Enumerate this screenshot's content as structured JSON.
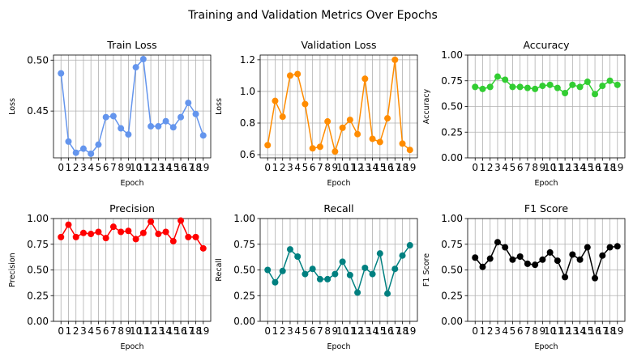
{
  "figure": {
    "title": "Training and Validation Metrics Over Epochs"
  },
  "chart_data": [
    {
      "type": "line",
      "title": "Train Loss",
      "xlabel": "Epoch",
      "ylabel": "Loss",
      "x": [
        0,
        1,
        2,
        3,
        4,
        5,
        6,
        7,
        8,
        9,
        10,
        11,
        12,
        13,
        14,
        15,
        16,
        17,
        18,
        19
      ],
      "y": [
        0.487,
        0.42,
        0.409,
        0.413,
        0.408,
        0.417,
        0.444,
        0.445,
        0.433,
        0.427,
        0.493,
        0.501,
        0.435,
        0.435,
        0.44,
        0.434,
        0.444,
        0.458,
        0.447,
        0.426
      ],
      "xticks": [
        "0",
        "1",
        "2",
        "3",
        "4",
        "5",
        "6",
        "7",
        "8",
        "9",
        "10",
        "11",
        "12",
        "13",
        "14",
        "15",
        "16",
        "17",
        "18",
        "19"
      ],
      "ylim": [
        0.404,
        0.505
      ],
      "yticks": [
        "0.45",
        "0.50"
      ],
      "color": "#6495ED",
      "grid": true
    },
    {
      "type": "line",
      "title": "Validation Loss",
      "xlabel": "Epoch",
      "ylabel": "Loss",
      "x": [
        0,
        1,
        2,
        3,
        4,
        5,
        6,
        7,
        8,
        9,
        10,
        11,
        12,
        13,
        14,
        15,
        16,
        17,
        18,
        19
      ],
      "y": [
        0.66,
        0.94,
        0.84,
        1.1,
        1.11,
        0.92,
        0.64,
        0.65,
        0.81,
        0.62,
        0.77,
        0.82,
        0.73,
        1.08,
        0.7,
        0.68,
        0.83,
        1.2,
        0.67,
        0.63
      ],
      "xticks": [
        "0",
        "1",
        "2",
        "3",
        "4",
        "5",
        "6",
        "7",
        "8",
        "9",
        "10",
        "11",
        "12",
        "13",
        "14",
        "15",
        "16",
        "17",
        "18",
        "19"
      ],
      "ylim": [
        0.58,
        1.23
      ],
      "yticks": [
        "0.6",
        "0.8",
        "1.0",
        "1.2"
      ],
      "color": "#FF8C00",
      "grid": true
    },
    {
      "type": "line",
      "title": "Accuracy",
      "xlabel": "Epoch",
      "ylabel": "Accuracy",
      "x": [
        0,
        1,
        2,
        3,
        4,
        5,
        6,
        7,
        8,
        9,
        10,
        11,
        12,
        13,
        14,
        15,
        16,
        17,
        18,
        19
      ],
      "y": [
        0.69,
        0.67,
        0.69,
        0.79,
        0.76,
        0.69,
        0.69,
        0.68,
        0.67,
        0.7,
        0.71,
        0.68,
        0.63,
        0.71,
        0.69,
        0.74,
        0.62,
        0.7,
        0.75,
        0.71
      ],
      "xticks": [
        "0",
        "1",
        "2",
        "3",
        "4",
        "5",
        "6",
        "7",
        "8",
        "9",
        "10",
        "11",
        "12",
        "13",
        "14",
        "15",
        "16",
        "17",
        "18",
        "19"
      ],
      "ylim": [
        0,
        1
      ],
      "yticks": [
        "0.00",
        "0.25",
        "0.50",
        "0.75",
        "1.00"
      ],
      "color": "#32CD32",
      "grid": true
    },
    {
      "type": "line",
      "title": "Precision",
      "xlabel": "Epoch",
      "ylabel": "Precision",
      "x": [
        0,
        1,
        2,
        3,
        4,
        5,
        6,
        7,
        8,
        9,
        10,
        11,
        12,
        13,
        14,
        15,
        16,
        17,
        18,
        19
      ],
      "y": [
        0.82,
        0.94,
        0.82,
        0.86,
        0.85,
        0.87,
        0.81,
        0.92,
        0.87,
        0.88,
        0.8,
        0.86,
        0.97,
        0.85,
        0.87,
        0.78,
        0.98,
        0.82,
        0.82,
        0.71
      ],
      "xticks": [
        "0",
        "1",
        "2",
        "3",
        "4",
        "5",
        "6",
        "7",
        "8",
        "9",
        "10",
        "11",
        "12",
        "13",
        "14",
        "15",
        "16",
        "17",
        "18",
        "19"
      ],
      "ylim": [
        0,
        1
      ],
      "yticks": [
        "0.00",
        "0.25",
        "0.50",
        "0.75",
        "1.00"
      ],
      "color": "#FF0000",
      "grid": true
    },
    {
      "type": "line",
      "title": "Recall",
      "xlabel": "Epoch",
      "ylabel": "Recall",
      "x": [
        0,
        1,
        2,
        3,
        4,
        5,
        6,
        7,
        8,
        9,
        10,
        11,
        12,
        13,
        14,
        15,
        16,
        17,
        18,
        19
      ],
      "y": [
        0.5,
        0.38,
        0.49,
        0.7,
        0.63,
        0.46,
        0.51,
        0.41,
        0.41,
        0.46,
        0.58,
        0.45,
        0.28,
        0.52,
        0.46,
        0.66,
        0.27,
        0.51,
        0.64,
        0.74
      ],
      "xticks": [
        "0",
        "1",
        "2",
        "3",
        "4",
        "5",
        "6",
        "7",
        "8",
        "9",
        "10",
        "11",
        "12",
        "13",
        "14",
        "15",
        "16",
        "17",
        "18",
        "19"
      ],
      "ylim": [
        0,
        1
      ],
      "yticks": [
        "0.00",
        "0.25",
        "0.50",
        "0.75",
        "1.00"
      ],
      "color": "#008080",
      "grid": true
    },
    {
      "type": "line",
      "title": "F1 Score",
      "xlabel": "Epoch",
      "ylabel": "F1 Score",
      "x": [
        0,
        1,
        2,
        3,
        4,
        5,
        6,
        7,
        8,
        9,
        10,
        11,
        12,
        13,
        14,
        15,
        16,
        17,
        18,
        19
      ],
      "y": [
        0.62,
        0.53,
        0.61,
        0.77,
        0.72,
        0.6,
        0.63,
        0.56,
        0.55,
        0.6,
        0.67,
        0.59,
        0.43,
        0.65,
        0.6,
        0.72,
        0.42,
        0.64,
        0.72,
        0.73
      ],
      "xticks": [
        "0",
        "1",
        "2",
        "3",
        "4",
        "5",
        "6",
        "7",
        "8",
        "9",
        "10",
        "11",
        "12",
        "13",
        "14",
        "15",
        "16",
        "17",
        "18",
        "19"
      ],
      "ylim": [
        0,
        1
      ],
      "yticks": [
        "0.00",
        "0.25",
        "0.50",
        "0.75",
        "1.00"
      ],
      "color": "#000000",
      "grid": true
    }
  ]
}
